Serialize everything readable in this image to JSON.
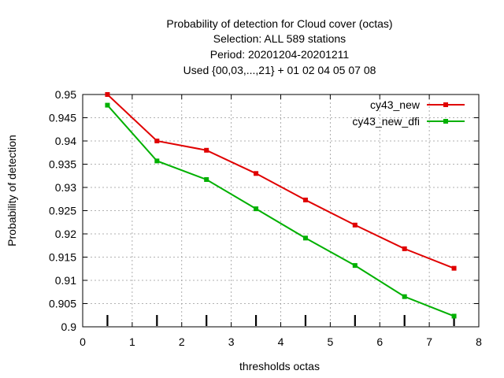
{
  "chart_data": {
    "type": "line",
    "title_lines": [
      "Probability of detection  for Cloud cover (octas)",
      "Selection: ALL    589 stations",
      "Period: 20201204-20201211",
      "Used {00,03,...,21} + 01 02 04 05 07 08"
    ],
    "xlabel": "thresholds octas",
    "ylabel": "Probability of detection",
    "xlim": [
      0,
      8
    ],
    "ylim": [
      0.9,
      0.95
    ],
    "xticks": [
      "0",
      "1",
      "2",
      "3",
      "4",
      "5",
      "6",
      "7",
      "8"
    ],
    "yticks": [
      "0.9",
      "0.905",
      "0.91",
      "0.915",
      "0.92",
      "0.925",
      "0.93",
      "0.935",
      "0.94",
      "0.945",
      "0.95"
    ],
    "grid": true,
    "legend_position": "top-right",
    "x": [
      0.5,
      1.5,
      2.5,
      3.5,
      4.5,
      5.5,
      6.5,
      7.5
    ],
    "series": [
      {
        "name": "cy43_new",
        "color": "#e00000",
        "values": [
          0.95,
          0.94,
          0.938,
          0.933,
          0.9273,
          0.9219,
          0.9168,
          0.9126
        ]
      },
      {
        "name": "cy43_new_dfi",
        "color": "#00b000",
        "values": [
          0.9477,
          0.9357,
          0.9317,
          0.9254,
          0.9191,
          0.9132,
          0.9065,
          0.9023
        ]
      }
    ]
  }
}
